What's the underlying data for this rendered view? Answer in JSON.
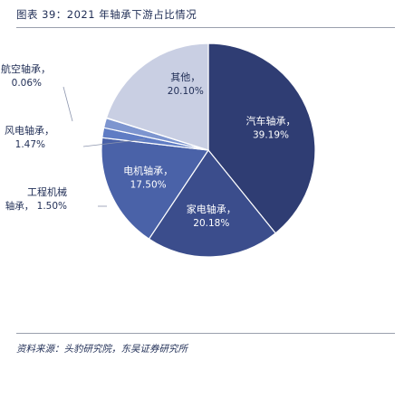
{
  "header": {
    "title": "图表 39：2021 年轴承下游占比情况"
  },
  "footer": {
    "source": "资料来源：头豹研究院，东吴证券研究所"
  },
  "colors": {
    "title_text": "#1f2d55",
    "rule": "#9aa0ad",
    "label_inside": "#ffffff",
    "label_outside": "#1f2d55"
  },
  "chart_data": {
    "type": "pie",
    "slices": [
      {
        "name": "汽车轴承",
        "value": 39.19,
        "label": "汽车轴承，",
        "value_label": "39.19%",
        "color": "#2f3d73",
        "label_pos": "inside"
      },
      {
        "name": "家电轴承",
        "value": 20.18,
        "label": "家电轴承，",
        "value_label": "20.18%",
        "color": "#3b4d8c",
        "label_pos": "inside"
      },
      {
        "name": "电机轴承",
        "value": 17.5,
        "label": "电机轴承，",
        "value_label": "17.50%",
        "color": "#4a62a8",
        "label_pos": "inside"
      },
      {
        "name": "工程机械轴承",
        "value": 1.5,
        "label": "工程机械",
        "label2": "轴承，",
        "value_label": "1.50%",
        "color": "#5f7cc4",
        "label_pos": "outside"
      },
      {
        "name": "风电轴承",
        "value": 1.47,
        "label": "风电轴承，",
        "value_label": "1.47%",
        "color": "#7d95cf",
        "label_pos": "outside"
      },
      {
        "name": "航空轴承",
        "value": 0.06,
        "label": "航空轴承，",
        "value_label": "0.06%",
        "color": "#a9b6dd",
        "label_pos": "outside"
      },
      {
        "name": "其他",
        "value": 20.1,
        "label": "其他，",
        "value_label": "20.10%",
        "color": "#c9cfe3",
        "label_pos": "inside-dark"
      }
    ]
  }
}
